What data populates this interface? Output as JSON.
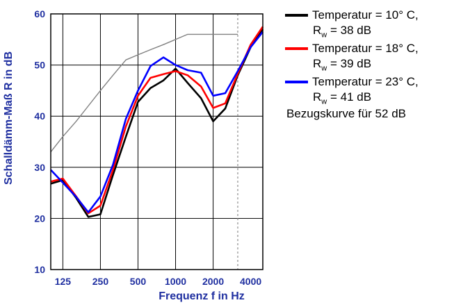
{
  "chart_data": {
    "type": "line",
    "xlabel": "Frequenz f in Hz",
    "ylabel": "Schalldämm-Maß R in dB",
    "ylim": [
      10,
      60
    ],
    "yticks": [
      10,
      20,
      30,
      40,
      50,
      60
    ],
    "xtick_labels": [
      "125",
      "250",
      "500",
      "1000",
      "2000",
      "4000"
    ],
    "x_scale": "log (third-octave bands)",
    "grid": true,
    "legend_position": "right",
    "x": [
      100,
      125,
      160,
      200,
      250,
      315,
      400,
      500,
      630,
      800,
      1000,
      1250,
      1600,
      2000,
      2500,
      3150,
      4000,
      5000
    ],
    "series": [
      {
        "name": "Temperatur = 10° C,",
        "detail": "= 38 dB",
        "color": "#000000",
        "values": [
          26.8,
          27.5,
          24.0,
          20.3,
          20.8,
          28.5,
          36.0,
          42.8,
          45.5,
          47.0,
          49.3,
          46.5,
          43.5,
          39.0,
          41.5,
          48.0,
          53.5,
          57.0
        ]
      },
      {
        "name": "Temperatur = 18° C,",
        "detail": "= 39 dB",
        "color": "#ff0000",
        "values": [
          27.2,
          27.8,
          24.3,
          21.0,
          22.5,
          29.5,
          38.0,
          44.0,
          47.5,
          48.2,
          48.8,
          48.0,
          45.8,
          41.6,
          42.5,
          48.3,
          54.0,
          57.5
        ]
      },
      {
        "name": "Temperatur = 23° C,",
        "detail": "= 41 dB",
        "color": "#0000ff",
        "values": [
          29.5,
          27.0,
          24.2,
          21.2,
          24.3,
          30.5,
          39.5,
          45.0,
          49.8,
          51.5,
          50.0,
          49.0,
          48.5,
          44.0,
          44.5,
          48.8,
          53.5,
          56.5
        ]
      },
      {
        "name": "Bezugskurve für 52 dB",
        "color": "#808080",
        "x": [
          100,
          125,
          160,
          200,
          250,
          315,
          400,
          500,
          630,
          800,
          1000,
          1250,
          1600,
          2000,
          2500,
          3150
        ],
        "values": [
          33,
          36,
          39,
          42,
          45,
          48,
          51,
          52,
          53,
          54,
          55,
          56,
          56,
          56,
          56,
          56
        ]
      }
    ]
  },
  "legend": {
    "items": [
      {
        "label": "Temperatur = 10° C,",
        "sub_prefix": "R",
        "sub": "w",
        "sub_value": " = 38 dB",
        "color": "#000000"
      },
      {
        "label": "Temperatur = 18° C,",
        "sub_prefix": "R",
        "sub": "w",
        "sub_value": " = 39 dB",
        "color": "#ff0000"
      },
      {
        "label": "Temperatur = 23° C,",
        "sub_prefix": "R",
        "sub": "w",
        "sub_value": " = 41 dB",
        "color": "#0000ff"
      }
    ],
    "reference_label": "Bezugskurve für 52 dB"
  }
}
